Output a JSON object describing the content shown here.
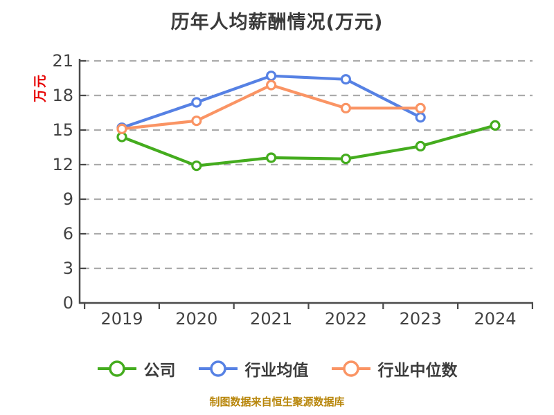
{
  "title": "历年人均薪酬情况(万元)",
  "y_axis": {
    "label": "万元",
    "label_color": "#e60000",
    "ticks": [
      0,
      3,
      6,
      9,
      12,
      15,
      18,
      21
    ]
  },
  "x_axis": {
    "categories": [
      "2019",
      "2020",
      "2021",
      "2022",
      "2023",
      "2024"
    ]
  },
  "chart_data": {
    "type": "line",
    "title": "历年人均薪酬情况(万元)",
    "ylabel": "万元",
    "ylim": [
      0,
      21
    ],
    "grid": "horizontal-dashed",
    "legend_position": "bottom",
    "categories": [
      "2019",
      "2020",
      "2021",
      "2022",
      "2023",
      "2024"
    ],
    "series": [
      {
        "name": "公司",
        "color": "#44ac1e",
        "values": [
          14.4,
          11.9,
          12.6,
          12.5,
          13.6,
          15.4
        ]
      },
      {
        "name": "行业均值",
        "color": "#5681e4",
        "values": [
          15.2,
          17.4,
          19.7,
          19.4,
          16.1,
          null
        ]
      },
      {
        "name": "行业中位数",
        "color": "#fa9464",
        "values": [
          15.1,
          15.8,
          18.9,
          16.9,
          16.9,
          null
        ]
      }
    ]
  },
  "source_note": {
    "text": "制图数据来自恒生聚源数据库",
    "color": "#b8860b"
  },
  "colors": {
    "background": "#ffffff",
    "grid": "#ababab",
    "axis": "#4a4a4a",
    "tick_text": "#424242",
    "title_text": "#3a3a3a"
  }
}
